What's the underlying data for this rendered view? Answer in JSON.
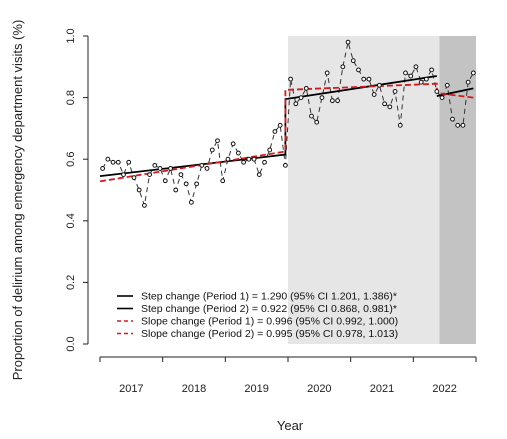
{
  "chart_data": {
    "type": "line",
    "xlabel": "Year",
    "ylabel": "Proportion of delirium among emergency department visits (%)",
    "ylim": [
      0.0,
      1.0
    ],
    "y_ticks": [
      "0.0",
      "0.2",
      "0.4",
      "0.6",
      "0.8",
      "1.0"
    ],
    "categories": [
      "2017",
      "2018",
      "2019",
      "2020",
      "2021",
      "2022"
    ],
    "periods": [
      {
        "label": "Period 1",
        "start_month": 36,
        "end_month": 65,
        "color": "#e6e6e6"
      },
      {
        "label": "Period 2",
        "start_month": 65,
        "end_month": 72,
        "color": "#c3c3c3"
      }
    ],
    "observed": {
      "months": [
        1,
        2,
        3,
        4,
        5,
        6,
        7,
        8,
        9,
        10,
        11,
        12,
        13,
        14,
        15,
        16,
        17,
        18,
        19,
        20,
        21,
        22,
        23,
        24,
        25,
        26,
        27,
        28,
        29,
        30,
        31,
        32,
        33,
        34,
        35,
        36,
        37,
        38,
        39,
        40,
        41,
        42,
        43,
        44,
        45,
        46,
        47,
        48,
        49,
        50,
        51,
        52,
        53,
        54,
        55,
        56,
        57,
        58,
        59,
        60,
        61,
        62,
        63,
        64,
        65,
        66,
        67,
        68,
        69,
        70,
        71,
        72
      ],
      "values": [
        0.57,
        0.6,
        0.59,
        0.59,
        0.55,
        0.59,
        0.54,
        0.5,
        0.45,
        0.55,
        0.58,
        0.57,
        0.53,
        0.57,
        0.5,
        0.55,
        0.52,
        0.46,
        0.52,
        0.58,
        0.57,
        0.63,
        0.66,
        0.53,
        0.6,
        0.65,
        0.62,
        0.59,
        0.6,
        0.6,
        0.55,
        0.59,
        0.63,
        0.69,
        0.71,
        0.58,
        0.86,
        0.78,
        0.8,
        0.83,
        0.74,
        0.72,
        0.8,
        0.88,
        0.79,
        0.79,
        0.9,
        0.98,
        0.92,
        0.89,
        0.86,
        0.86,
        0.81,
        0.84,
        0.78,
        0.77,
        0.82,
        0.71,
        0.88,
        0.87,
        0.9,
        0.85,
        0.86,
        0.89,
        0.82,
        0.8,
        0.84,
        0.73,
        0.71,
        0.71,
        0.85,
        0.88
      ]
    },
    "series": [
      {
        "name": "Step change (Period 1) = 1.290 (95% CI 1.201, 1.386)*",
        "color": "#000000",
        "dash": "solid",
        "segments": [
          [
            [
              0.5,
              0.545
            ],
            [
              36,
              0.615
            ],
            [
              36,
              0.795
            ],
            [
              65,
              0.87
            ]
          ],
          [
            [
              65,
              0.805
            ],
            [
              72,
              0.83
            ]
          ]
        ]
      },
      {
        "name": "Step change (Period 2) = 0.922 (95% CI 0.868, 0.981)*",
        "color": "#000000",
        "dash": "solid",
        "segments": []
      },
      {
        "name": "Slope change (Period 1) = 0.996 (95% CI 0.992, 1.000)",
        "color": "#d7191c",
        "dash": "dashed",
        "segments": [
          [
            [
              0.5,
              0.528
            ],
            [
              36,
              0.625
            ],
            [
              36,
              0.825
            ],
            [
              65,
              0.845
            ],
            [
              65,
              0.815
            ],
            [
              72,
              0.8
            ]
          ]
        ]
      },
      {
        "name": "Slope change (Period 2) = 0.995 (95% CI 0.978, 1.013)",
        "color": "#d7191c",
        "dash": "dashed",
        "segments": []
      }
    ],
    "legend_position": "bottom-center"
  }
}
